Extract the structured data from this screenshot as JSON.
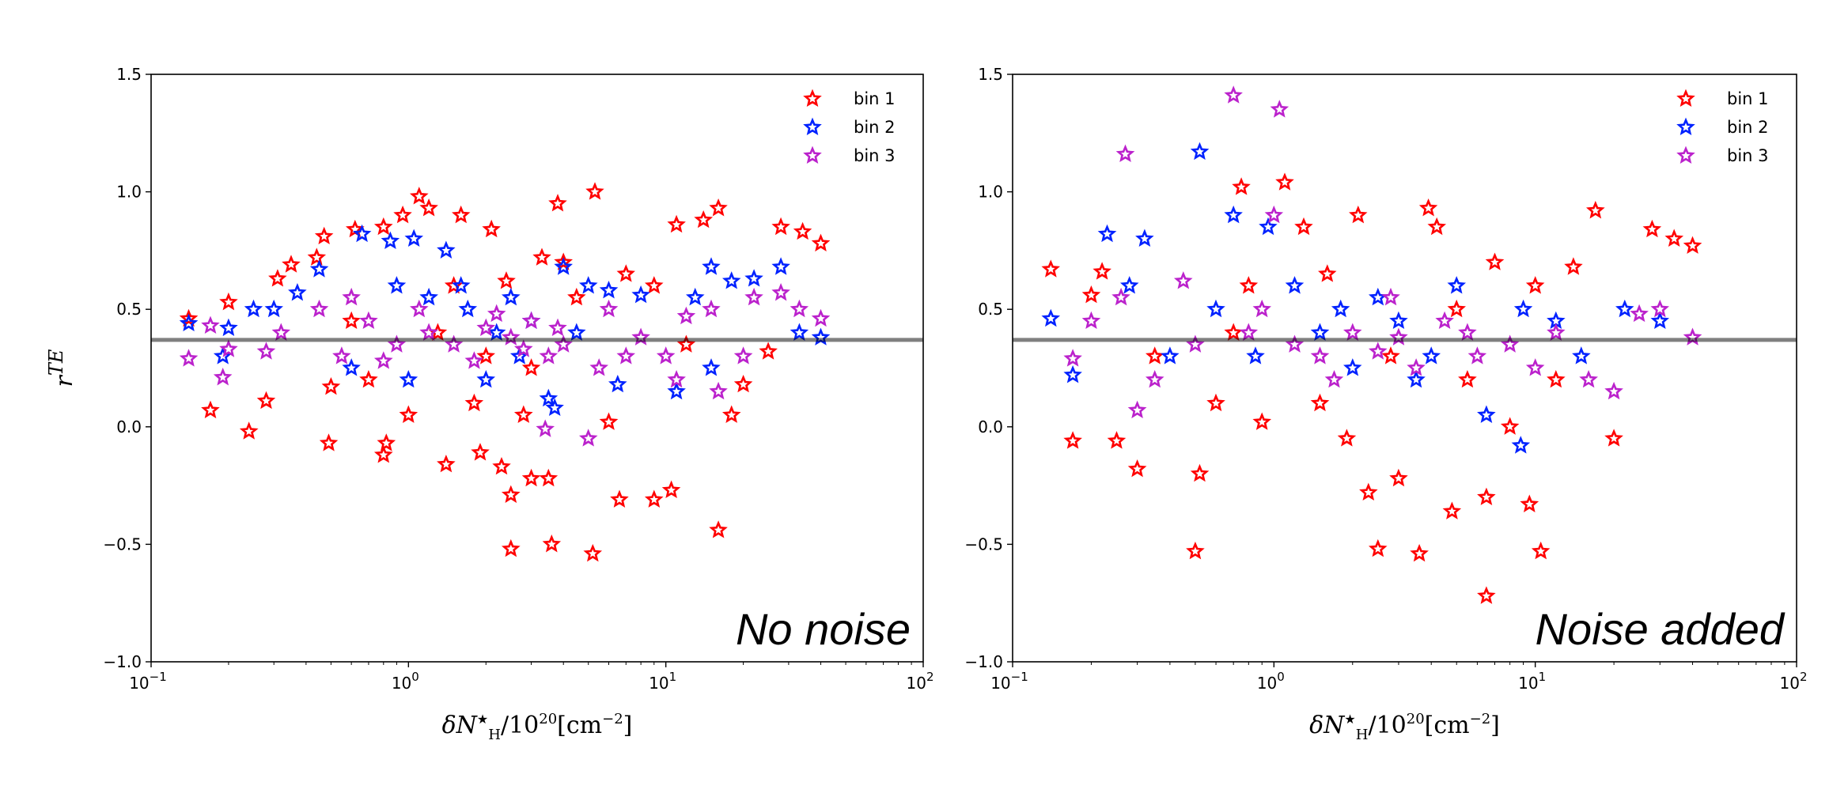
{
  "chart_data": [
    {
      "type": "scatter",
      "annotation": "No noise",
      "xlabel": "δN_H*/10^20[cm^-2]",
      "xlabel_parts": {
        "main": "δN",
        "sub": "H",
        "sup_star": "★",
        "rest": "/10",
        "exp": "20",
        "unit": "[cm",
        "unit_exp": "−2",
        "close": "]"
      },
      "ylabel": "r^TE",
      "ylabel_parts": {
        "r": "r",
        "sup": "TE"
      },
      "xscale": "log",
      "xlim": [
        0.1,
        100
      ],
      "ylim": [
        -1.0,
        1.5
      ],
      "xticks": [
        {
          "v": 0.1,
          "base": "10",
          "exp": "−1"
        },
        {
          "v": 1,
          "base": "10",
          "exp": "0"
        },
        {
          "v": 10,
          "base": "10",
          "exp": "1"
        },
        {
          "v": 100,
          "base": "10",
          "exp": "2"
        }
      ],
      "yticks": [
        {
          "v": -1.0,
          "t": "−1.0"
        },
        {
          "v": -0.5,
          "t": "−0.5"
        },
        {
          "v": 0.0,
          "t": "0.0"
        },
        {
          "v": 0.5,
          "t": "0.5"
        },
        {
          "v": 1.0,
          "t": "1.0"
        },
        {
          "v": 1.5,
          "t": "1.5"
        }
      ],
      "hline": 0.37,
      "legend_position": "top-right",
      "series": [
        {
          "name": "bin 1",
          "color": "#ff0000",
          "points": [
            [
              0.14,
              0.46
            ],
            [
              0.17,
              0.07
            ],
            [
              0.2,
              0.53
            ],
            [
              0.24,
              -0.02
            ],
            [
              0.28,
              0.11
            ],
            [
              0.31,
              0.63
            ],
            [
              0.35,
              0.69
            ],
            [
              0.44,
              0.72
            ],
            [
              0.47,
              0.81
            ],
            [
              0.49,
              -0.07
            ],
            [
              0.5,
              0.17
            ],
            [
              0.62,
              0.84
            ],
            [
              0.8,
              0.85
            ],
            [
              0.8,
              -0.12
            ],
            [
              0.82,
              -0.07
            ],
            [
              0.95,
              0.9
            ],
            [
              1.1,
              0.98
            ],
            [
              1.2,
              0.93
            ],
            [
              1.4,
              -0.16
            ],
            [
              1.6,
              0.9
            ],
            [
              1.9,
              -0.11
            ],
            [
              2.1,
              0.84
            ],
            [
              2.3,
              -0.17
            ],
            [
              2.5,
              -0.29
            ],
            [
              2.5,
              -0.52
            ],
            [
              3.0,
              -0.22
            ],
            [
              3.5,
              -0.22
            ],
            [
              3.6,
              -0.5
            ],
            [
              3.8,
              0.95
            ],
            [
              5.2,
              -0.54
            ],
            [
              5.3,
              1.0
            ],
            [
              6.6,
              -0.31
            ],
            [
              9.0,
              -0.31
            ],
            [
              10.5,
              -0.27
            ],
            [
              11,
              0.86
            ],
            [
              14,
              0.88
            ],
            [
              16,
              -0.44
            ],
            [
              16,
              0.93
            ],
            [
              28,
              0.85
            ],
            [
              34,
              0.83
            ],
            [
              40,
              0.78
            ],
            [
              2,
              0.3
            ],
            [
              3,
              0.25
            ],
            [
              1.5,
              0.6
            ],
            [
              4,
              0.7
            ],
            [
              7,
              0.65
            ],
            [
              20,
              0.18
            ],
            [
              18,
              0.05
            ],
            [
              0.7,
              0.2
            ],
            [
              1.0,
              0.05
            ],
            [
              2.8,
              0.05
            ],
            [
              1.3,
              0.4
            ],
            [
              2.4,
              0.62
            ],
            [
              3.3,
              0.72
            ],
            [
              4.5,
              0.55
            ],
            [
              0.6,
              0.45
            ],
            [
              9,
              0.6
            ],
            [
              12,
              0.35
            ],
            [
              25,
              0.32
            ],
            [
              1.8,
              0.1
            ],
            [
              6,
              0.02
            ]
          ]
        },
        {
          "name": "bin 2",
          "color": "#0022ff",
          "points": [
            [
              0.14,
              0.44
            ],
            [
              0.19,
              0.3
            ],
            [
              0.2,
              0.42
            ],
            [
              0.25,
              0.5
            ],
            [
              0.3,
              0.5
            ],
            [
              0.37,
              0.57
            ],
            [
              0.45,
              0.67
            ],
            [
              0.66,
              0.82
            ],
            [
              0.85,
              0.79
            ],
            [
              1.05,
              0.8
            ],
            [
              1.4,
              0.75
            ],
            [
              1.6,
              0.6
            ],
            [
              2,
              0.2
            ],
            [
              2.5,
              0.55
            ],
            [
              3.5,
              0.12
            ],
            [
              3.7,
              0.08
            ],
            [
              4,
              0.68
            ],
            [
              5,
              0.6
            ],
            [
              6,
              0.58
            ],
            [
              6.5,
              0.18
            ],
            [
              8,
              0.56
            ],
            [
              11,
              0.15
            ],
            [
              15,
              0.68
            ],
            [
              15,
              0.25
            ],
            [
              22,
              0.63
            ],
            [
              28,
              0.68
            ],
            [
              33,
              0.4
            ],
            [
              40,
              0.38
            ],
            [
              1,
              0.2
            ],
            [
              1.2,
              0.55
            ],
            [
              2.2,
              0.4
            ],
            [
              3,
              0.45
            ],
            [
              0.6,
              0.25
            ],
            [
              1.7,
              0.5
            ],
            [
              2.7,
              0.3
            ],
            [
              4.5,
              0.4
            ],
            [
              0.9,
              0.6
            ],
            [
              13,
              0.55
            ],
            [
              18,
              0.62
            ]
          ]
        },
        {
          "name": "bin 3",
          "color": "#bb22cc",
          "points": [
            [
              0.14,
              0.29
            ],
            [
              0.17,
              0.43
            ],
            [
              0.19,
              0.21
            ],
            [
              0.2,
              0.33
            ],
            [
              0.28,
              0.32
            ],
            [
              0.32,
              0.4
            ],
            [
              0.45,
              0.5
            ],
            [
              0.55,
              0.3
            ],
            [
              0.7,
              0.45
            ],
            [
              0.9,
              0.35
            ],
            [
              1.2,
              0.4
            ],
            [
              1.5,
              0.35
            ],
            [
              2,
              0.42
            ],
            [
              2.5,
              0.38
            ],
            [
              3,
              0.45
            ],
            [
              3.5,
              0.3
            ],
            [
              3.4,
              -0.01
            ],
            [
              5,
              -0.05
            ],
            [
              4,
              0.35
            ],
            [
              5.5,
              0.25
            ],
            [
              6,
              0.5
            ],
            [
              8,
              0.38
            ],
            [
              10,
              0.3
            ],
            [
              12,
              0.47
            ],
            [
              15,
              0.5
            ],
            [
              20,
              0.3
            ],
            [
              22,
              0.55
            ],
            [
              28,
              0.57
            ],
            [
              33,
              0.5
            ],
            [
              40,
              0.46
            ],
            [
              11,
              0.2
            ],
            [
              16,
              0.15
            ],
            [
              1.8,
              0.28
            ],
            [
              2.2,
              0.48
            ],
            [
              0.8,
              0.28
            ],
            [
              1.1,
              0.5
            ],
            [
              2.8,
              0.33
            ],
            [
              3.8,
              0.42
            ],
            [
              0.6,
              0.55
            ],
            [
              7,
              0.3
            ]
          ]
        }
      ]
    },
    {
      "type": "scatter",
      "annotation": "Noise added",
      "xlabel": "δN_H*/10^20[cm^-2]",
      "xscale": "log",
      "xlim": [
        0.1,
        100
      ],
      "ylim": [
        -1.0,
        1.5
      ],
      "hline": 0.37,
      "legend_position": "top-right",
      "series": [
        {
          "name": "bin 1",
          "color": "#ff0000",
          "points": [
            [
              0.14,
              0.67
            ],
            [
              0.17,
              -0.06
            ],
            [
              0.2,
              0.56
            ],
            [
              0.22,
              0.66
            ],
            [
              0.25,
              -0.06
            ],
            [
              0.3,
              -0.18
            ],
            [
              0.35,
              0.3
            ],
            [
              0.5,
              -0.53
            ],
            [
              0.52,
              -0.2
            ],
            [
              0.6,
              0.1
            ],
            [
              0.75,
              1.02
            ],
            [
              0.8,
              0.6
            ],
            [
              0.9,
              0.02
            ],
            [
              1.1,
              1.04
            ],
            [
              1.3,
              0.85
            ],
            [
              1.5,
              0.1
            ],
            [
              1.9,
              -0.05
            ],
            [
              2.1,
              0.9
            ],
            [
              2.3,
              -0.28
            ],
            [
              2.5,
              -0.52
            ],
            [
              3.0,
              -0.22
            ],
            [
              3.6,
              -0.54
            ],
            [
              3.9,
              0.93
            ],
            [
              4.2,
              0.85
            ],
            [
              4.8,
              -0.36
            ],
            [
              5.5,
              0.2
            ],
            [
              6.5,
              -0.72
            ],
            [
              6.5,
              -0.3
            ],
            [
              7,
              0.7
            ],
            [
              9.5,
              -0.33
            ],
            [
              10.5,
              -0.53
            ],
            [
              10,
              0.6
            ],
            [
              14,
              0.68
            ],
            [
              17,
              0.92
            ],
            [
              20,
              -0.05
            ],
            [
              28,
              0.84
            ],
            [
              34,
              0.8
            ],
            [
              40,
              0.77
            ],
            [
              1.6,
              0.65
            ],
            [
              2.8,
              0.3
            ],
            [
              0.7,
              0.4
            ],
            [
              5,
              0.5
            ],
            [
              12,
              0.2
            ],
            [
              8,
              0.0
            ]
          ]
        },
        {
          "name": "bin 2",
          "color": "#0022ff",
          "points": [
            [
              0.14,
              0.46
            ],
            [
              0.17,
              0.22
            ],
            [
              0.23,
              0.82
            ],
            [
              0.28,
              0.6
            ],
            [
              0.32,
              0.8
            ],
            [
              0.4,
              0.3
            ],
            [
              0.52,
              1.17
            ],
            [
              0.6,
              0.5
            ],
            [
              0.7,
              0.9
            ],
            [
              0.95,
              0.85
            ],
            [
              1.2,
              0.6
            ],
            [
              1.5,
              0.4
            ],
            [
              2,
              0.25
            ],
            [
              2.5,
              0.55
            ],
            [
              3,
              0.45
            ],
            [
              4,
              0.3
            ],
            [
              5,
              0.6
            ],
            [
              6.5,
              0.05
            ],
            [
              8.8,
              -0.08
            ],
            [
              9,
              0.5
            ],
            [
              12,
              0.45
            ],
            [
              15,
              0.3
            ],
            [
              22,
              0.5
            ],
            [
              30,
              0.45
            ],
            [
              0.85,
              0.3
            ],
            [
              1.8,
              0.5
            ],
            [
              3.5,
              0.2
            ]
          ]
        },
        {
          "name": "bin 3",
          "color": "#bb22cc",
          "points": [
            [
              0.17,
              0.29
            ],
            [
              0.2,
              0.45
            ],
            [
              0.27,
              1.16
            ],
            [
              0.26,
              0.55
            ],
            [
              0.3,
              0.07
            ],
            [
              0.35,
              0.2
            ],
            [
              0.45,
              0.62
            ],
            [
              0.5,
              0.35
            ],
            [
              0.7,
              1.41
            ],
            [
              0.8,
              0.4
            ],
            [
              1.05,
              1.35
            ],
            [
              1.0,
              0.9
            ],
            [
              1.2,
              0.35
            ],
            [
              1.5,
              0.3
            ],
            [
              2,
              0.4
            ],
            [
              2.5,
              0.32
            ],
            [
              3,
              0.38
            ],
            [
              3.5,
              0.25
            ],
            [
              4.5,
              0.45
            ],
            [
              6,
              0.3
            ],
            [
              8,
              0.35
            ],
            [
              10,
              0.25
            ],
            [
              12,
              0.4
            ],
            [
              16,
              0.2
            ],
            [
              20,
              0.15
            ],
            [
              25,
              0.48
            ],
            [
              30,
              0.5
            ],
            [
              40,
              0.38
            ],
            [
              0.9,
              0.5
            ],
            [
              1.7,
              0.2
            ],
            [
              2.8,
              0.55
            ],
            [
              5.5,
              0.4
            ]
          ]
        }
      ]
    }
  ]
}
